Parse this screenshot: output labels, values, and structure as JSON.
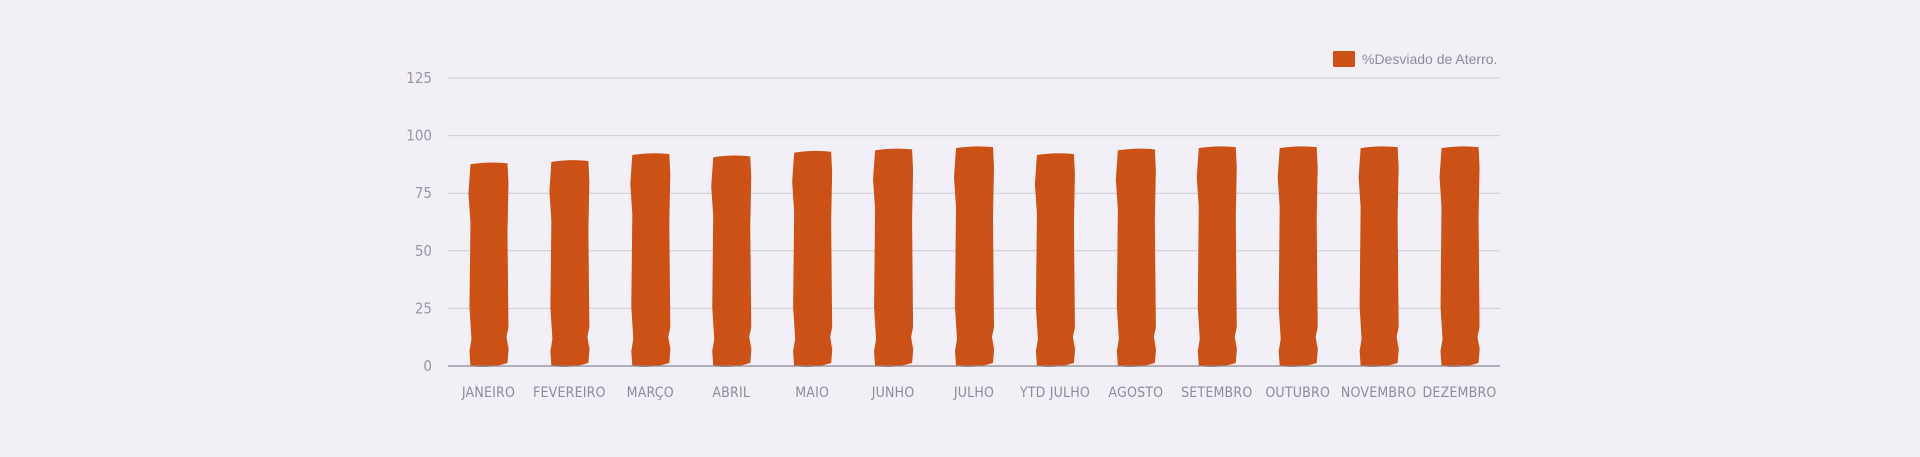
{
  "chart_data": {
    "type": "bar",
    "categories": [
      "JANEIRO",
      "FEVEREIRO",
      "MARÇO",
      "ABRIL",
      "MAIO",
      "JUNHO",
      "JULHO",
      "YTD JULHO",
      "AGOSTO",
      "SETEMBRO",
      "OUTUBRO",
      "NOVEMBRO",
      "DEZEMBRO"
    ],
    "series": [
      {
        "name": "%Desviado de Aterro.",
        "values": [
          88,
          89,
          92,
          91,
          93,
          94,
          95,
          92,
          94,
          95,
          95,
          95,
          95
        ]
      }
    ],
    "ylim": [
      0,
      125
    ],
    "yticks": [
      0,
      25,
      50,
      75,
      100,
      125
    ],
    "grid": true,
    "legend": "top-right",
    "colors": {
      "bar": "#cb5117",
      "background": "#f3eff6",
      "grid": "#cfcbd6",
      "text": "#8f8b98"
    }
  }
}
